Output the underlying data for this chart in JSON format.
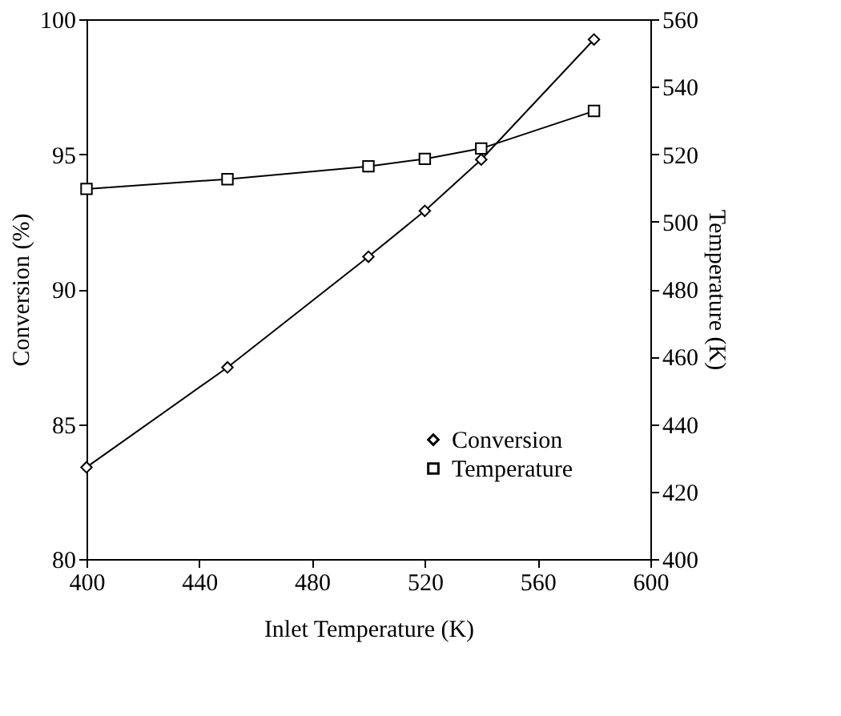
{
  "chart_data": {
    "type": "line",
    "xlabel": "Inlet Temperature (K)",
    "ylabel": "Conversion (%)",
    "y2label": "Temperature (K)",
    "x": [
      400,
      450,
      500,
      520,
      540,
      580
    ],
    "series": [
      {
        "name": "Conversion",
        "color": "#000000",
        "marker": "diamond",
        "values": [
          83.4,
          87.1,
          91.2,
          92.9,
          94.8,
          99.25
        ]
      },
      {
        "name": "Temperature",
        "color": "#000000",
        "marker": "square",
        "axis": "y2",
        "values": [
          509.7,
          512.6,
          516.4,
          518.6,
          521.7,
          532.8
        ]
      }
    ],
    "xlim": [
      400,
      600
    ],
    "xticks": [
      400,
      440,
      480,
      520,
      560,
      600
    ],
    "ylim": [
      80,
      100
    ],
    "yticks": [
      80,
      85,
      90,
      95,
      100
    ],
    "y2lim": [
      400,
      560
    ],
    "y2ticks": [
      400,
      420,
      440,
      460,
      480,
      500,
      520,
      540,
      560
    ],
    "grid": false,
    "legend": "bottom right",
    "line_style": "solid"
  }
}
